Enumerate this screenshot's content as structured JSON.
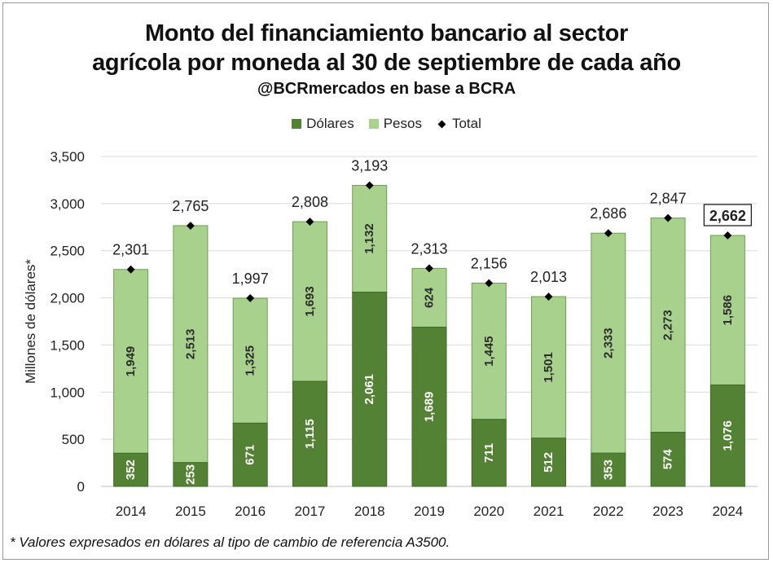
{
  "chart_data": {
    "type": "bar",
    "stacked": true,
    "title": "Monto del financiamiento bancario al sector agrícola por moneda al 30 de septiembre de cada año",
    "title_line1": "Monto del financiamiento bancario al sector",
    "title_line2": "agrícola por moneda al 30 de septiembre de cada año",
    "subtitle": "@BCRmercados en base a BCRA",
    "ylabel": "Millones de dólares*",
    "xlabel": "",
    "ylim": [
      0,
      3500
    ],
    "yticks": [
      0,
      500,
      1000,
      1500,
      2000,
      2500,
      3000,
      3500
    ],
    "ytick_labels": [
      "0",
      "500",
      "1,000",
      "1,500",
      "2,000",
      "2,500",
      "3,000",
      "3,500"
    ],
    "grid": true,
    "legend_position": "top",
    "categories": [
      "2014",
      "2015",
      "2016",
      "2017",
      "2018",
      "2019",
      "2020",
      "2021",
      "2022",
      "2023",
      "2024"
    ],
    "series": [
      {
        "name": "Dólares",
        "color": "#548235",
        "values": [
          352,
          253,
          671,
          1115,
          2061,
          1689,
          711,
          512,
          353,
          574,
          1076
        ],
        "labels": [
          "352",
          "253",
          "671",
          "1,115",
          "2,061",
          "1,689",
          "711",
          "512",
          "353",
          "574",
          "1,076"
        ]
      },
      {
        "name": "Pesos",
        "color": "#a9d18e",
        "values": [
          1949,
          2513,
          1325,
          1693,
          1132,
          624,
          1445,
          1501,
          2333,
          2273,
          1586
        ],
        "labels": [
          "1,949",
          "2,513",
          "1,325",
          "1,693",
          "1,132",
          "624",
          "1,445",
          "1,501",
          "2,333",
          "2,273",
          "1,586"
        ]
      }
    ],
    "total": {
      "name": "Total",
      "values": [
        2301,
        2765,
        1997,
        2808,
        3193,
        2313,
        2156,
        2013,
        2686,
        2847,
        2662
      ],
      "labels": [
        "2,301",
        "2,765",
        "1,997",
        "2,808",
        "3,193",
        "2,313",
        "2,156",
        "2,013",
        "2,686",
        "2,847",
        "2,662"
      ],
      "highlighted_index": 10
    }
  },
  "footnote": "* Valores expresados en dólares al tipo de cambio de referencia A3500."
}
